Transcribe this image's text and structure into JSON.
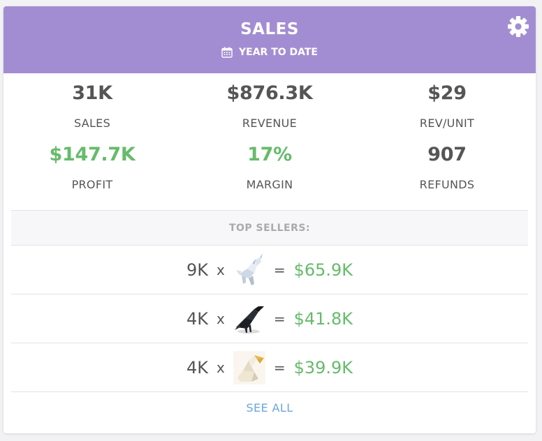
{
  "header": {
    "title": "SALES",
    "period": "YEAR TO DATE",
    "calendar_icon": "calendar-icon",
    "settings_icon": "gear-icon"
  },
  "stats": [
    {
      "value": "31K",
      "label": "SALES",
      "accent": false
    },
    {
      "value": "$876.3K",
      "label": "REVENUE",
      "accent": false
    },
    {
      "value": "$29",
      "label": "REV/UNIT",
      "accent": false
    },
    {
      "value": "$147.7K",
      "label": "PROFIT",
      "accent": true
    },
    {
      "value": "17%",
      "label": "MARGIN",
      "accent": true
    },
    {
      "value": "907",
      "label": "REFUNDS",
      "accent": false
    }
  ],
  "top_sellers": {
    "heading": "TOP SELLERS:",
    "times": "x",
    "equals": "=",
    "items": [
      {
        "qty": "9K",
        "amount": "$65.9K",
        "thumb": "origami-unicorn"
      },
      {
        "qty": "4K",
        "amount": "$41.8K",
        "thumb": "origami-crow"
      },
      {
        "qty": "4K",
        "amount": "$39.9K",
        "thumb": "origami-pelican"
      }
    ],
    "see_all": "SEE ALL"
  },
  "colors": {
    "header_bg": "#a38dd2",
    "positive": "#66bb6a",
    "link": "#6aa7dc"
  }
}
